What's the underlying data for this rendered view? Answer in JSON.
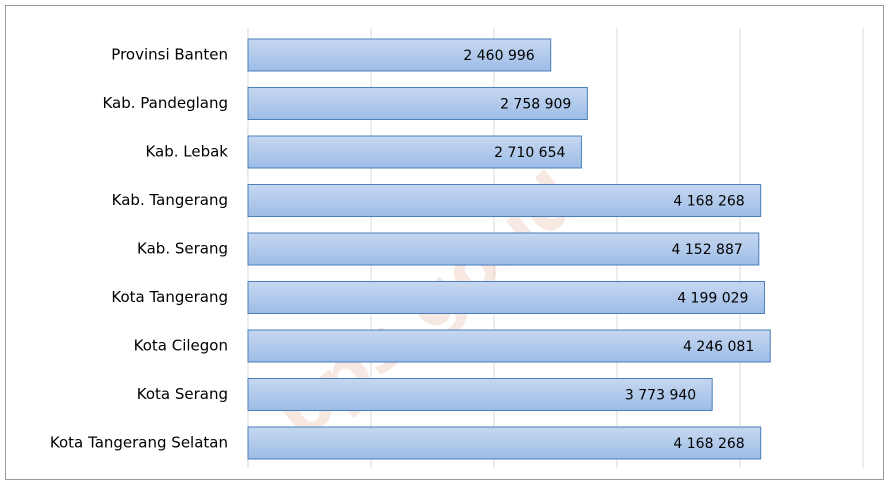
{
  "chart_data": {
    "type": "bar",
    "orientation": "horizontal",
    "categories": [
      "Provinsi Banten",
      "Kab. Pandeglang",
      "Kab. Lebak",
      "Kab. Tangerang",
      "Kab. Serang",
      "Kota Tangerang",
      "Kota Cilegon",
      "Kota Serang",
      "Kota Tangerang Selatan"
    ],
    "values": [
      2460996,
      2758909,
      2710654,
      4168268,
      4152887,
      4199029,
      4246081,
      3773940,
      4168268
    ],
    "value_labels": [
      "2 460 996",
      "2 758 909",
      "2 710 654",
      "4 168 268",
      "4 152 887",
      "4 199 029",
      "4 246 081",
      "3 773 940",
      "4 168 268"
    ],
    "color": "#a9c4eb",
    "xlim": [
      0,
      5000000
    ],
    "xticks": [
      0,
      1000000,
      2000000,
      3000000,
      4000000,
      5000000
    ],
    "grid": true,
    "watermark": "bps.go.id"
  }
}
